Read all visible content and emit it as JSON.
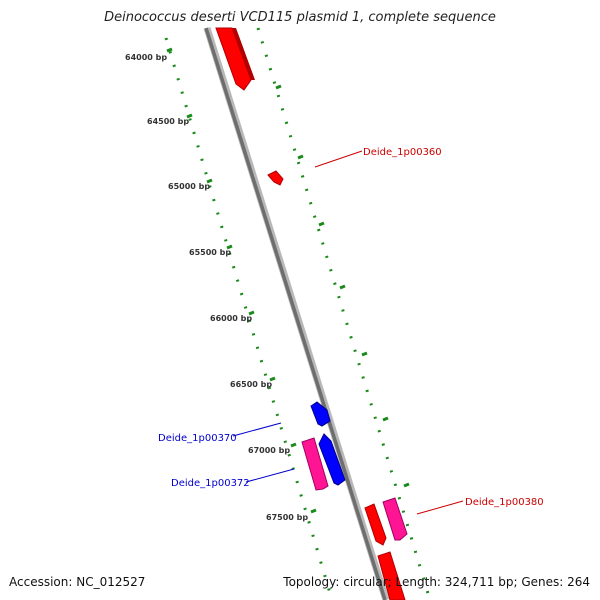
{
  "title": "Deinococcus deserti VCD115 plasmid 1, complete sequence",
  "footer": {
    "accession": "Accession: NC_012527",
    "summary": "Topology: circular; Length: 324,711 bp; Genes: 264"
  },
  "colors": {
    "forward_gene": "#ff0000",
    "forward_gene_alt": "#ff1493",
    "reverse_gene": "#0000ff",
    "backbone": "#8c8c8c",
    "ticks": "#1a8a1a",
    "label_forward": "#cc0000",
    "label_reverse": "#0000cc"
  },
  "ticks": [
    {
      "label": "64000 bp"
    },
    {
      "label": "64500 bp"
    },
    {
      "label": "65000 bp"
    },
    {
      "label": "65500 bp"
    },
    {
      "label": "66000 bp"
    },
    {
      "label": "66500 bp"
    },
    {
      "label": "67000 bp"
    },
    {
      "label": "67500 bp"
    }
  ],
  "gene_labels": [
    {
      "name": "Deide_1p00360",
      "strand": "forward"
    },
    {
      "name": "Deide_1p00370",
      "strand": "reverse"
    },
    {
      "name": "Deide_1p00372",
      "strand": "reverse"
    },
    {
      "name": "Deide_1p00380",
      "strand": "forward"
    }
  ]
}
